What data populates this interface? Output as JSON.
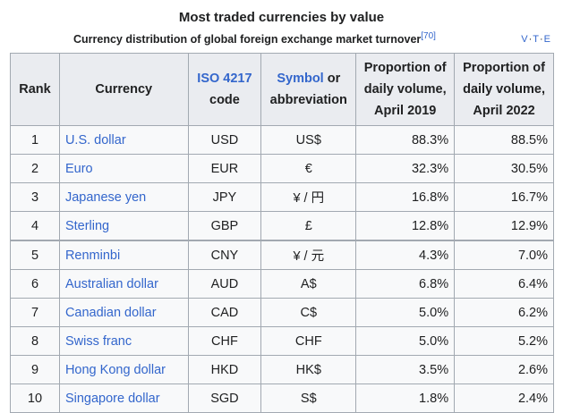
{
  "caption": {
    "title": "Most traded currencies by value",
    "subtitle": "Currency distribution of global foreign exchange market turnover",
    "reference": "[70]",
    "navbox": {
      "v": "V",
      "t": "T",
      "e": "E"
    }
  },
  "header": {
    "rank": "Rank",
    "currency": "Currency",
    "iso_link": "ISO 4217",
    "iso_rest": "code",
    "symbol_link": "Symbol",
    "symbol_rest": "or abbreviation",
    "vol2019": "Proportion of daily volume, April 2019",
    "vol2022": "Proportion of daily volume, April 2022"
  },
  "rows": [
    {
      "rank": "1",
      "currency": "U.S. dollar",
      "code": "USD",
      "symbol": "US$",
      "vol2019": "88.3%",
      "vol2022": "88.5%"
    },
    {
      "rank": "2",
      "currency": "Euro",
      "code": "EUR",
      "symbol": "€",
      "vol2019": "32.3%",
      "vol2022": "30.5%"
    },
    {
      "rank": "3",
      "currency": "Japanese yen",
      "code": "JPY",
      "symbol": "¥ / 円",
      "vol2019": "16.8%",
      "vol2022": "16.7%"
    },
    {
      "rank": "4",
      "currency": "Sterling",
      "code": "GBP",
      "symbol": "£",
      "vol2019": "12.8%",
      "vol2022": "12.9%"
    },
    {
      "rank": "5",
      "currency": "Renminbi",
      "code": "CNY",
      "symbol": "¥ / 元",
      "vol2019": "4.3%",
      "vol2022": "7.0%"
    },
    {
      "rank": "6",
      "currency": "Australian dollar",
      "code": "AUD",
      "symbol": "A$",
      "vol2019": "6.8%",
      "vol2022": "6.4%"
    },
    {
      "rank": "7",
      "currency": "Canadian dollar",
      "code": "CAD",
      "symbol": "C$",
      "vol2019": "5.0%",
      "vol2022": "6.2%"
    },
    {
      "rank": "8",
      "currency": "Swiss franc",
      "code": "CHF",
      "symbol": "CHF",
      "vol2019": "5.0%",
      "vol2022": "5.2%"
    },
    {
      "rank": "9",
      "currency": "Hong Kong dollar",
      "code": "HKD",
      "symbol": "HK$",
      "vol2019": "3.5%",
      "vol2022": "2.6%"
    },
    {
      "rank": "10",
      "currency": "Singapore dollar",
      "code": "SGD",
      "symbol": "S$",
      "vol2019": "1.8%",
      "vol2022": "2.4%"
    }
  ]
}
